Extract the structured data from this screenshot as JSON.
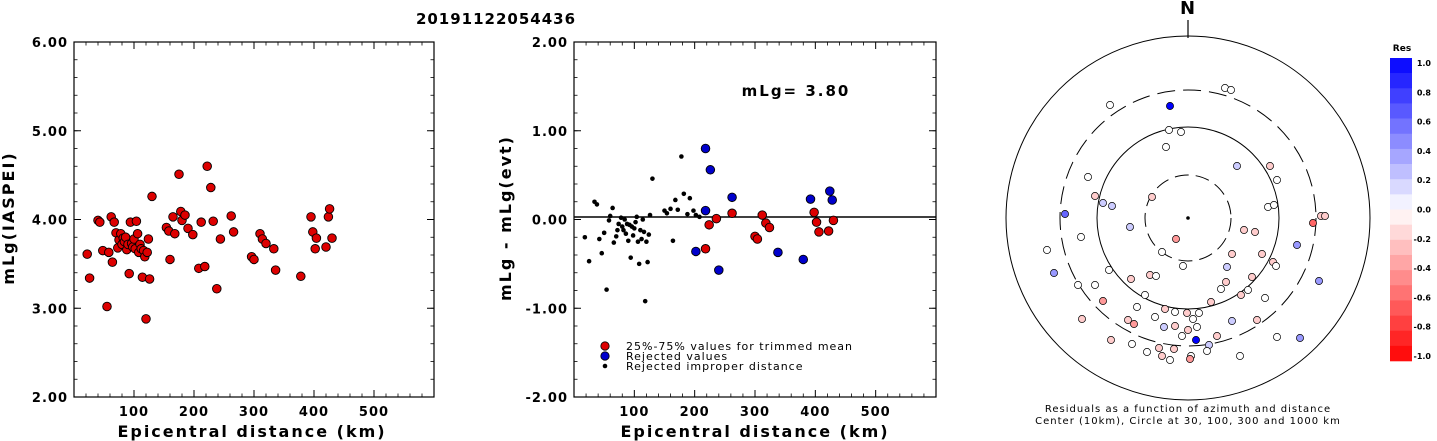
{
  "title": "20191122054436",
  "chart_data": [
    {
      "type": "scatter",
      "xlabel": "Epicentral distance (km)",
      "ylabel": "mLg(IASPEI)",
      "xlim": [
        0,
        600
      ],
      "ylim": [
        2.0,
        6.0
      ],
      "xticks": [
        "100",
        "200",
        "300",
        "400",
        "500"
      ],
      "yticks": [
        "2.00",
        "3.00",
        "4.00",
        "5.00",
        "6.00"
      ],
      "series": [
        {
          "color": "#dd0000",
          "points": [
            [
              22,
              3.61
            ],
            [
              26,
              3.34
            ],
            [
              40,
              3.99
            ],
            [
              43,
              3.97
            ],
            [
              48,
              3.65
            ],
            [
              55,
              3.02
            ],
            [
              58,
              3.63
            ],
            [
              62,
              4.03
            ],
            [
              64,
              3.52
            ],
            [
              67,
              3.97
            ],
            [
              70,
              3.85
            ],
            [
              73,
              3.68
            ],
            [
              75,
              3.77
            ],
            [
              78,
              3.84
            ],
            [
              80,
              3.72
            ],
            [
              82,
              3.79
            ],
            [
              84,
              3.75
            ],
            [
              86,
              3.8
            ],
            [
              88,
              3.66
            ],
            [
              90,
              3.72
            ],
            [
              92,
              3.39
            ],
            [
              94,
              3.97
            ],
            [
              96,
              3.73
            ],
            [
              98,
              3.69
            ],
            [
              100,
              3.78
            ],
            [
              102,
              3.67
            ],
            [
              104,
              3.98
            ],
            [
              106,
              3.84
            ],
            [
              108,
              3.63
            ],
            [
              110,
              3.72
            ],
            [
              112,
              3.67
            ],
            [
              114,
              3.35
            ],
            [
              116,
              3.65
            ],
            [
              118,
              3.58
            ],
            [
              120,
              2.88
            ],
            [
              122,
              3.63
            ],
            [
              124,
              3.78
            ],
            [
              126,
              3.33
            ],
            [
              130,
              4.26
            ],
            [
              154,
              3.91
            ],
            [
              158,
              3.87
            ],
            [
              160,
              3.55
            ],
            [
              165,
              4.03
            ],
            [
              168,
              3.84
            ],
            [
              175,
              4.51
            ],
            [
              178,
              4.09
            ],
            [
              180,
              3.99
            ],
            [
              185,
              4.05
            ],
            [
              190,
              3.9
            ],
            [
              198,
              3.83
            ],
            [
              208,
              3.45
            ],
            [
              212,
              3.97
            ],
            [
              218,
              3.47
            ],
            [
              222,
              4.6
            ],
            [
              228,
              4.36
            ],
            [
              232,
              3.98
            ],
            [
              238,
              3.22
            ],
            [
              244,
              3.78
            ],
            [
              262,
              4.04
            ],
            [
              266,
              3.86
            ],
            [
              296,
              3.58
            ],
            [
              300,
              3.55
            ],
            [
              310,
              3.84
            ],
            [
              314,
              3.78
            ],
            [
              320,
              3.73
            ],
            [
              333,
              3.67
            ],
            [
              336,
              3.43
            ],
            [
              378,
              3.36
            ],
            [
              395,
              4.03
            ],
            [
              398,
              3.86
            ],
            [
              402,
              3.67
            ],
            [
              404,
              3.79
            ],
            [
              420,
              3.69
            ],
            [
              424,
              4.03
            ],
            [
              426,
              4.12
            ],
            [
              430,
              3.79
            ]
          ]
        }
      ]
    },
    {
      "type": "scatter",
      "xlabel": "Epicentral distance (km)",
      "ylabel": "mLg - mLg(evt)",
      "xlim": [
        0,
        600
      ],
      "ylim": [
        -2.0,
        2.0
      ],
      "xticks": [
        "100",
        "200",
        "300",
        "400",
        "500"
      ],
      "yticks": [
        "-2.00",
        "-1.00",
        "0.00",
        "1.00",
        "2.00"
      ],
      "annotation": "mLg= 3.80",
      "series": [
        {
          "name": "25%-75% values for trimmed mean",
          "color": "#dd0000",
          "marker": "circle",
          "points": [
            [
              218,
              -0.33
            ],
            [
              224,
              -0.06
            ],
            [
              236,
              0.01
            ],
            [
              262,
              0.07
            ],
            [
              300,
              -0.19
            ],
            [
              304,
              -0.22
            ],
            [
              312,
              0.05
            ],
            [
              318,
              -0.04
            ],
            [
              324,
              -0.09
            ],
            [
              398,
              0.08
            ],
            [
              402,
              -0.03
            ],
            [
              406,
              -0.14
            ],
            [
              422,
              -0.13
            ],
            [
              430,
              -0.01
            ]
          ]
        },
        {
          "name": "Rejected values",
          "color": "#0000cc",
          "marker": "circle",
          "points": [
            [
              218,
              0.1
            ],
            [
              218,
              0.8
            ],
            [
              202,
              -0.36
            ],
            [
              226,
              0.56
            ],
            [
              240,
              -0.57
            ],
            [
              262,
              0.25
            ],
            [
              338,
              -0.37
            ],
            [
              380,
              -0.45
            ],
            [
              392,
              0.23
            ],
            [
              424,
              0.32
            ],
            [
              428,
              0.22
            ]
          ]
        },
        {
          "name": "Rejected improper distance",
          "color": "#000000",
          "marker": "dot",
          "points": [
            [
              18,
              -0.2
            ],
            [
              25,
              -0.47
            ],
            [
              34,
              0.2
            ],
            [
              38,
              0.17
            ],
            [
              42,
              -0.22
            ],
            [
              46,
              -0.38
            ],
            [
              50,
              -0.15
            ],
            [
              54,
              -0.79
            ],
            [
              58,
              -0.01
            ],
            [
              60,
              0.04
            ],
            [
              64,
              0.13
            ],
            [
              66,
              -0.26
            ],
            [
              70,
              -0.19
            ],
            [
              72,
              -0.12
            ],
            [
              74,
              -0.05
            ],
            [
              78,
              0.02
            ],
            [
              80,
              -0.08
            ],
            [
              82,
              -0.12
            ],
            [
              84,
              0.0
            ],
            [
              86,
              -0.16
            ],
            [
              88,
              -0.05
            ],
            [
              90,
              -0.24
            ],
            [
              92,
              -0.06
            ],
            [
              94,
              -0.43
            ],
            [
              96,
              -0.08
            ],
            [
              98,
              -0.18
            ],
            [
              100,
              -0.1
            ],
            [
              102,
              -0.03
            ],
            [
              104,
              0.03
            ],
            [
              106,
              -0.25
            ],
            [
              108,
              -0.5
            ],
            [
              110,
              -0.12
            ],
            [
              112,
              -0.22
            ],
            [
              114,
              0.0
            ],
            [
              116,
              -0.14
            ],
            [
              118,
              -0.92
            ],
            [
              120,
              -0.25
            ],
            [
              122,
              -0.48
            ],
            [
              124,
              -0.17
            ],
            [
              126,
              0.05
            ],
            [
              130,
              0.46
            ],
            [
              150,
              0.1
            ],
            [
              154,
              0.07
            ],
            [
              160,
              0.12
            ],
            [
              164,
              -0.24
            ],
            [
              168,
              0.22
            ],
            [
              172,
              0.11
            ],
            [
              178,
              0.71
            ],
            [
              182,
              0.29
            ],
            [
              188,
              0.06
            ],
            [
              192,
              0.24
            ],
            [
              198,
              0.1
            ],
            [
              202,
              0.05
            ],
            [
              208,
              0.03
            ]
          ]
        }
      ]
    },
    {
      "type": "scatter",
      "title": "N",
      "caption_line1": "Residuals as a function of azimuth and distance",
      "caption_line2": "Center (10km), Circle at 30, 100, 300 and 1000 km",
      "points": [
        [
          1110,
          105,
          0.0
        ],
        [
          1170,
          106,
          1.0
        ],
        [
          1225,
          88,
          0.0
        ],
        [
          1231,
          90,
          0.0
        ],
        [
          1169,
          130,
          0.0
        ],
        [
          1181,
          132,
          0.0
        ],
        [
          1166,
          147,
          0.0
        ],
        [
          1237,
          166,
          0.2
        ],
        [
          1270,
          166,
          -0.2
        ],
        [
          1088,
          177,
          0.0
        ],
        [
          1277,
          180,
          0.0
        ],
        [
          1152,
          197,
          -0.2
        ],
        [
          1095,
          196,
          -0.2
        ],
        [
          1103,
          203,
          0.2
        ],
        [
          1112,
          206,
          0.2
        ],
        [
          1065,
          214,
          0.6
        ],
        [
          1268,
          207,
          0.0
        ],
        [
          1274,
          205,
          0.0
        ],
        [
          1313,
          223,
          -0.6
        ],
        [
          1321,
          216,
          -0.2
        ],
        [
          1325,
          216,
          -0.2
        ],
        [
          1130,
          227,
          0.2
        ],
        [
          1176,
          239,
          -0.4
        ],
        [
          1244,
          230,
          -0.2
        ],
        [
          1255,
          232,
          -0.2
        ],
        [
          1081,
          237,
          0.0
        ],
        [
          1297,
          245,
          0.4
        ],
        [
          1262,
          254,
          -0.2
        ],
        [
          1273,
          262,
          -0.2
        ],
        [
          1047,
          250,
          0.0
        ],
        [
          1162,
          252,
          0.0
        ],
        [
          1232,
          254,
          -0.2
        ],
        [
          1276,
          266,
          0.0
        ],
        [
          1054,
          273,
          0.4
        ],
        [
          1109,
          270,
          0.0
        ],
        [
          1183,
          266,
          0.0
        ],
        [
          1150,
          275,
          -0.2
        ],
        [
          1227,
          267,
          0.2
        ],
        [
          1319,
          281,
          0.4
        ],
        [
          1078,
          285,
          0.0
        ],
        [
          1095,
          285,
          0.0
        ],
        [
          1156,
          276,
          0.0
        ],
        [
          1131,
          279,
          -0.2
        ],
        [
          1226,
          282,
          -0.2
        ],
        [
          1221,
          289,
          0.0
        ],
        [
          1252,
          277,
          -0.2
        ],
        [
          1241,
          295,
          -0.2
        ],
        [
          1248,
          290,
          0.0
        ],
        [
          1145,
          295,
          0.0
        ],
        [
          1265,
          298,
          0.0
        ],
        [
          1103,
          301,
          -0.4
        ],
        [
          1082,
          319,
          -0.2
        ],
        [
          1137,
          307,
          0.0
        ],
        [
          1165,
          309,
          -0.2
        ],
        [
          1187,
          313,
          -0.2
        ],
        [
          1211,
          302,
          -0.2
        ],
        [
          1128,
          320,
          -0.2
        ],
        [
          1134,
          324,
          -0.4
        ],
        [
          1175,
          312,
          0.0
        ],
        [
          1111,
          340,
          -0.2
        ],
        [
          1155,
          317,
          0.0
        ],
        [
          1193,
          319,
          0.0
        ],
        [
          1199,
          313,
          0.0
        ],
        [
          1232,
          321,
          0.2
        ],
        [
          1257,
          320,
          -0.2
        ],
        [
          1164,
          327,
          0.2
        ],
        [
          1175,
          326,
          -0.2
        ],
        [
          1188,
          330,
          -0.2
        ],
        [
          1197,
          327,
          0.0
        ],
        [
          1182,
          336,
          0.0
        ],
        [
          1132,
          344,
          0.0
        ],
        [
          1300,
          338,
          0.4
        ],
        [
          1196,
          340,
          1.0
        ],
        [
          1209,
          345,
          0.2
        ],
        [
          1207,
          351,
          0.0
        ],
        [
          1159,
          348,
          -0.2
        ],
        [
          1174,
          349,
          -0.2
        ],
        [
          1162,
          356,
          -0.2
        ],
        [
          1191,
          356,
          0.0
        ],
        [
          1147,
          352,
          0.0
        ],
        [
          1217,
          336,
          -0.2
        ],
        [
          1170,
          360,
          0.0
        ],
        [
          1190,
          359,
          -0.4
        ],
        [
          1240,
          356,
          0.0
        ],
        [
          1277,
          337,
          0.0
        ]
      ]
    }
  ],
  "colorbar": {
    "title": "Res",
    "labels": [
      "1.0",
      "0.8",
      "0.6",
      "0.4",
      "0.2",
      "0.0",
      "-0.2",
      "-0.4",
      "-0.6",
      "-0.8",
      "-1.0"
    ]
  },
  "legend": {
    "items": [
      "25%-75% values for trimmed mean",
      "Rejected values",
      "Rejected improper distance"
    ]
  }
}
